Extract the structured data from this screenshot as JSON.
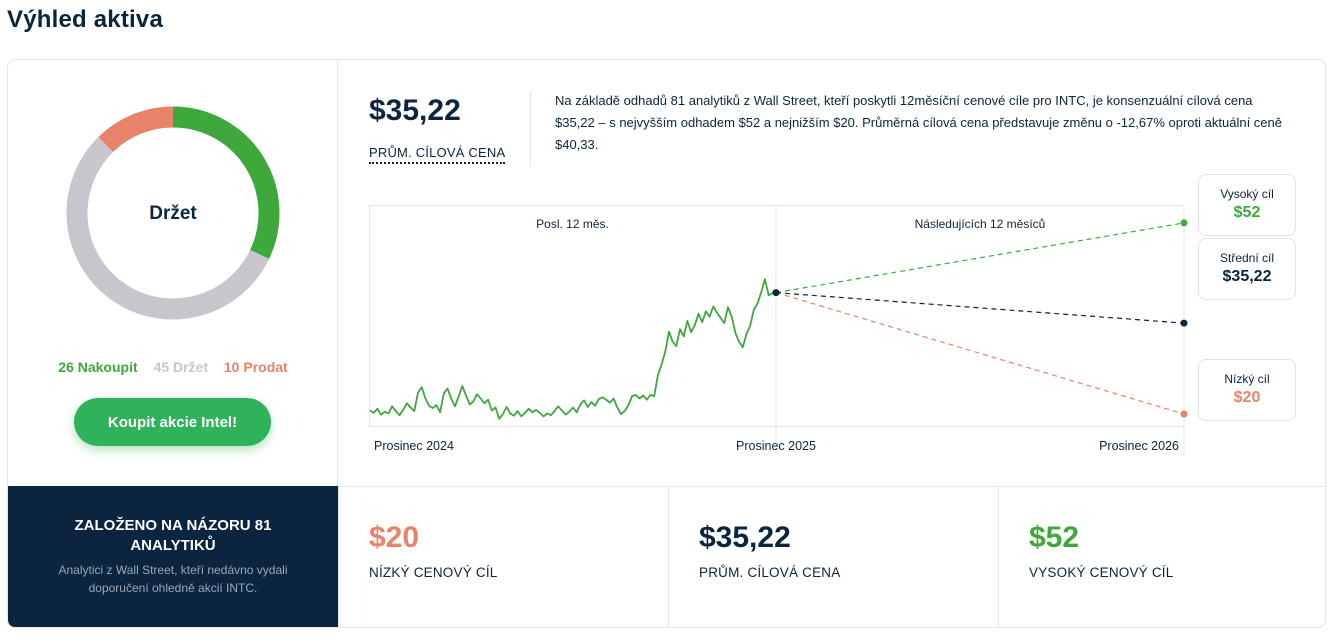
{
  "page": {
    "title": "Výhled aktiva"
  },
  "consensus": {
    "rating": "Držet",
    "buy": {
      "count": 26,
      "label": "26 Nakoupit"
    },
    "hold": {
      "count": 45,
      "label": "45 Držet"
    },
    "sell": {
      "count": 10,
      "label": "10 Prodat"
    },
    "button_label": "Koupit akcie Intel!"
  },
  "forecast": {
    "avg_value": "$35,22",
    "avg_label": "PRŮM. CÍLOVÁ CENA",
    "description": "Na základě odhadů 81 analytiků z Wall Street, kteří poskytli 12měsíční cenové cíle pro INTC, je konsenzuální cílová cena $35,22 – s nejvyšším odhadem $52 a nejnižším $20. Průměrná cílová cena představuje změnu o -12,67% oproti aktuální ceně $40,33.",
    "high": {
      "label": "Vysoký cíl",
      "value": "$52"
    },
    "mid": {
      "label": "Střední cíl",
      "value": "$35,22"
    },
    "low": {
      "label": "Nízký cíl",
      "value": "$20"
    }
  },
  "basis": {
    "title": "ZALOŽENO NA NÁZORU 81 ANALYTIKŮ",
    "subtitle": "Analytici z Wall Street, kteří nedávno vydali doporučení ohledně akcií INTC."
  },
  "stats": {
    "low": {
      "value": "$20",
      "label": "NÍZKÝ CENOVÝ CÍL"
    },
    "avg": {
      "value": "$35,22",
      "label": "PRŮM. CÍLOVÁ CENA"
    },
    "high": {
      "value": "$52",
      "label": "VYSOKÝ CENOVÝ CÍL"
    }
  },
  "colors": {
    "buy": "#3ea83c",
    "hold": "#c8c6cc",
    "sell": "#e8836a",
    "navy": "#0b2440",
    "button": "#2fb25a"
  },
  "chart_data": {
    "type": "line",
    "section_labels": [
      "Posl. 12 měs.",
      "Následujících 12 měsíců"
    ],
    "x_tick_labels": [
      "Prosinec 2024",
      "Prosinec 2025",
      "Prosinec 2026"
    ],
    "ylim": [
      18,
      55
    ],
    "current_price": 40.33,
    "history": [
      20.6,
      20.2,
      20.9,
      19.9,
      20.4,
      20.1,
      21.3,
      20.5,
      19.8,
      20.7,
      21.8,
      21.1,
      20.5,
      23.6,
      24.5,
      22.6,
      21.4,
      21.0,
      21.5,
      20.3,
      23.4,
      24.3,
      22.6,
      21.3,
      22.9,
      24.7,
      23.1,
      21.6,
      22.1,
      23.3,
      22.6,
      21.8,
      22.4,
      20.6,
      21.1,
      19.2,
      20.0,
      21.2,
      20.1,
      19.7,
      20.5,
      19.6,
      20.2,
      20.9,
      20.3,
      20.7,
      20.2,
      19.6,
      20.1,
      19.8,
      20.5,
      21.3,
      20.6,
      19.9,
      20.4,
      21.1,
      20.3,
      21.6,
      22.3,
      21.2,
      22.0,
      21.4,
      22.5,
      22.8,
      22.4,
      21.9,
      22.6,
      21.1,
      20.0,
      20.5,
      21.5,
      23.0,
      23.2,
      22.6,
      23.1,
      22.4,
      23.2,
      23.0,
      26.5,
      28.3,
      30.5,
      33.8,
      32.1,
      31.4,
      34.2,
      33.0,
      35.6,
      33.7,
      34.9,
      36.8,
      35.4,
      37.2,
      36.3,
      38.0,
      37.0,
      36.1,
      35.2,
      37.9,
      36.3,
      33.6,
      32.1,
      31.2,
      33.4,
      34.8,
      37.5,
      38.5,
      40.4,
      42.6,
      39.9,
      40.2,
      40.33
    ],
    "targets": {
      "high": 52,
      "mid": 35.22,
      "low": 20
    },
    "series_colors": {
      "price": "#3ea83c",
      "high": "#3ea83c",
      "mid": "#0b2440",
      "low": "#e8836a"
    }
  }
}
